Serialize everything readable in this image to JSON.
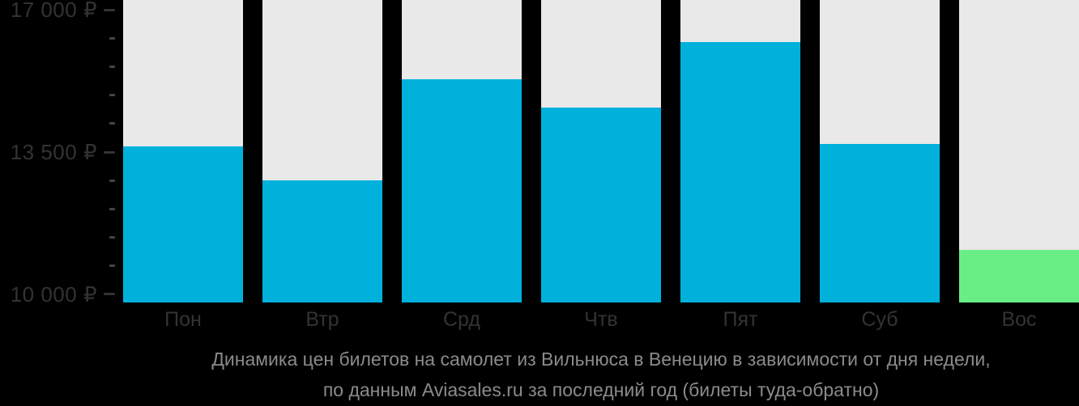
{
  "chart_data": {
    "type": "bar",
    "title": "Динамика цен билетов на самолет из Вильнюса в Венецию в зависимости от дня недели, по данным Aviasales.ru за последний год (билеты туда-обратно)",
    "categories": [
      "Пон",
      "Втр",
      "Срд",
      "Чтв",
      "Пят",
      "Суб",
      "Вос"
    ],
    "values": [
      13650,
      12800,
      15300,
      14600,
      16200,
      13700,
      11100
    ],
    "currency": "₽",
    "highlight_index": 6,
    "ylim": [
      9800,
      17240
    ],
    "yticks": [
      {
        "value": 17000,
        "label": "17 000 ₽"
      },
      {
        "value": 13500,
        "label": "13 500 ₽"
      },
      {
        "value": 10000,
        "label": "10 000 ₽"
      }
    ],
    "minor_tick_interval": 700,
    "grid": false,
    "legend": false,
    "background": "#000000",
    "colors": {
      "bar_default": "#00B1DC",
      "bar_highlight": "#69EE86",
      "column_background": "#E9E9E9",
      "axis_label": "#333333",
      "major_tick": "#333333",
      "minor_tick": "#454545",
      "caption_text": "#8B8B8B"
    }
  },
  "caption": {
    "line1": "Динамика цен билетов на самолет из Вильнюса в Венецию в зависимости от дня недели,",
    "line2": "по данным Aviasales.ru за последний год (билеты туда-обратно)"
  }
}
